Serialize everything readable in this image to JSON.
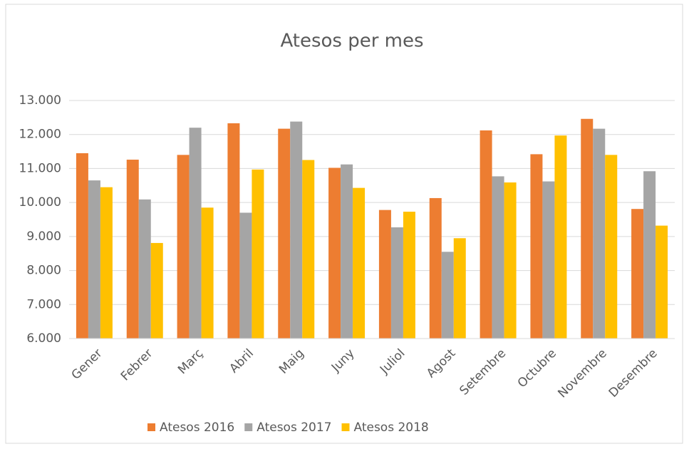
{
  "chart_data": {
    "type": "bar",
    "title": "Atesos per mes",
    "categories": [
      "Gener",
      "Febrer",
      "Març",
      "Abril",
      "Maig",
      "Juny",
      "Juliol",
      "Agost",
      "Setembre",
      "Octubre",
      "Novembre",
      "Desembre"
    ],
    "series": [
      {
        "name": "Atesos 2016",
        "color": "#ed7d31",
        "values": [
          11450,
          11260,
          11400,
          12330,
          12170,
          11020,
          9780,
          10130,
          12120,
          11420,
          12460,
          9810
        ]
      },
      {
        "name": "Atesos 2017",
        "color": "#a5a5a5",
        "values": [
          10650,
          10090,
          12200,
          9700,
          12380,
          11120,
          9270,
          8550,
          10770,
          10620,
          12170,
          10920
        ]
      },
      {
        "name": "Atesos 2018",
        "color": "#ffc000",
        "values": [
          10450,
          8810,
          9850,
          10970,
          11250,
          10430,
          9730,
          8950,
          10590,
          11970,
          11400,
          9320
        ]
      }
    ],
    "ylim": [
      6000,
      13000
    ],
    "yticks": [
      {
        "value": 6000,
        "label": "6.000"
      },
      {
        "value": 7000,
        "label": "7.000"
      },
      {
        "value": 8000,
        "label": "8.000"
      },
      {
        "value": 9000,
        "label": "9.000"
      },
      {
        "value": 10000,
        "label": "10.000"
      },
      {
        "value": 11000,
        "label": "11.000"
      },
      {
        "value": 12000,
        "label": "12.000"
      },
      {
        "value": 13000,
        "label": "13.000"
      }
    ],
    "grid": true,
    "legend": "bottom"
  }
}
